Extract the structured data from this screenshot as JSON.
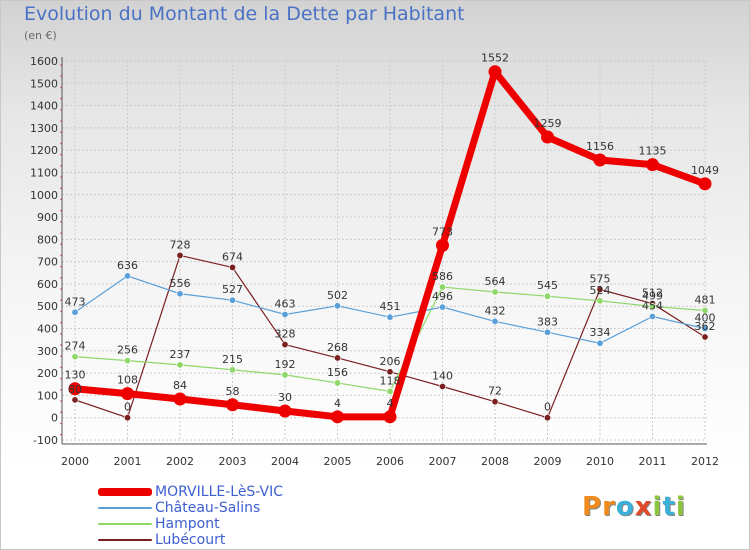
{
  "header": {
    "title": "Evolution du Montant de la Dette par Habitant",
    "unit": "(en €)"
  },
  "brand": {
    "letters": [
      "P",
      "r",
      "o",
      "x",
      "i",
      "t",
      "i"
    ],
    "colors": [
      "#f08a1c",
      "#f08a1c",
      "#3bb0d8",
      "#e04a2a",
      "#8cc63f",
      "#3bb0d8",
      "#8cc63f"
    ]
  },
  "chart_data": {
    "type": "line",
    "title": "Evolution du Montant de la Dette par Habitant",
    "ylabel": "(en €)",
    "xlabel": "",
    "x": [
      "2000",
      "2001",
      "2002",
      "2003",
      "2004",
      "2005",
      "2006",
      "2007",
      "2008",
      "2009",
      "2010",
      "2011",
      "2012"
    ],
    "ylim": [
      -100,
      1600
    ],
    "yticks": [
      "-100",
      "0",
      "100",
      "200",
      "300",
      "400",
      "500",
      "600",
      "700",
      "800",
      "900",
      "1000",
      "1100",
      "1200",
      "1300",
      "1400",
      "1500",
      "1600"
    ],
    "grid": true,
    "legend": "bottom-left",
    "series": [
      {
        "name": "MORVILLE-LèS-VIC",
        "color": "#ee0000",
        "values": [
          130,
          108,
          84,
          58,
          30,
          4,
          4,
          773,
          1552,
          1259,
          1156,
          1135,
          1049
        ],
        "labels": [
          "130",
          "108",
          "84",
          "58",
          "30",
          "4",
          "4",
          "773",
          "1552",
          "1259",
          "1156",
          "1135",
          "1049"
        ]
      },
      {
        "name": "Château-Salins",
        "color": "#5a9fd8",
        "values": [
          473,
          636,
          556,
          527,
          463,
          502,
          451,
          496,
          432,
          383,
          334,
          454,
          400
        ],
        "labels": [
          "473",
          "636",
          "556",
          "527",
          "463",
          "502",
          "451",
          "496",
          "432",
          "383",
          "334",
          "454",
          "400"
        ]
      },
      {
        "name": "Hampont",
        "color": "#8ed86a",
        "values": [
          274,
          256,
          237,
          215,
          192,
          156,
          118,
          586,
          564,
          545,
          524,
          499,
          481
        ],
        "labels": [
          "274",
          "256",
          "237",
          "215",
          "192",
          "156",
          "118",
          "586",
          "564",
          "545",
          "524",
          "499",
          "481"
        ]
      },
      {
        "name": "Lubécourt",
        "color": "#7a2020",
        "values": [
          80,
          0,
          728,
          674,
          328,
          268,
          206,
          140,
          72,
          0,
          575,
          512,
          362
        ],
        "labels": [
          "80",
          "0",
          "728",
          "674",
          "328",
          "268",
          "206",
          "140",
          "72",
          "0",
          "575",
          "512",
          "362"
        ]
      }
    ]
  }
}
